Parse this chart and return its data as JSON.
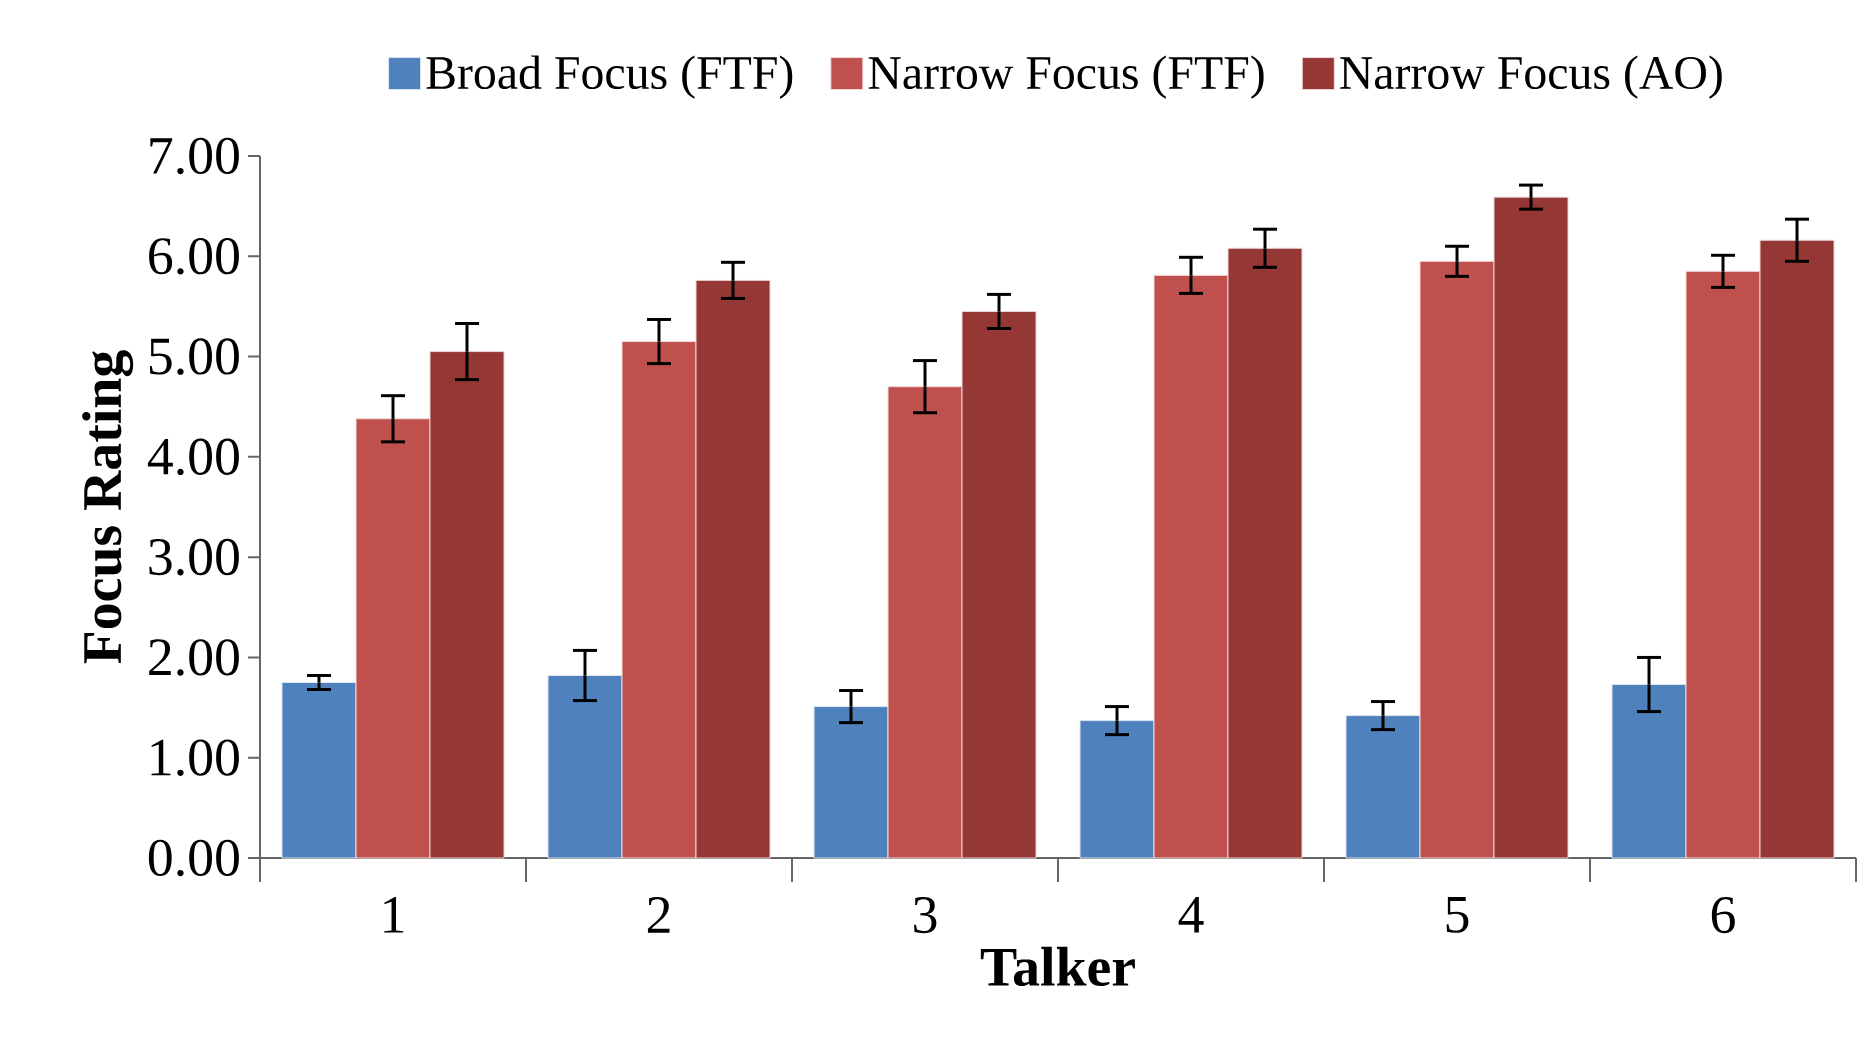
{
  "chart_data": {
    "type": "bar",
    "xlabel": "Talker",
    "ylabel": "Focus Rating",
    "categories": [
      "1",
      "2",
      "3",
      "4",
      "5",
      "6"
    ],
    "series": [
      {
        "name": "Broad Focus (FTF)",
        "color": "#4f81bd",
        "values": [
          1.75,
          1.82,
          1.51,
          1.37,
          1.42,
          1.73
        ],
        "errors": [
          0.07,
          0.25,
          0.16,
          0.14,
          0.14,
          0.27
        ]
      },
      {
        "name": "Narrow Focus (FTF)",
        "color": "#c0504d",
        "values": [
          4.38,
          5.15,
          4.7,
          5.81,
          5.95,
          5.85
        ],
        "errors": [
          0.23,
          0.22,
          0.26,
          0.18,
          0.15,
          0.16
        ]
      },
      {
        "name": "Narrow Focus (AO)",
        "color": "#953735",
        "values": [
          5.05,
          5.76,
          5.45,
          6.08,
          6.59,
          6.16
        ],
        "errors": [
          0.28,
          0.18,
          0.17,
          0.19,
          0.12,
          0.21
        ]
      }
    ],
    "ylim": [
      0,
      7
    ],
    "yticks": [
      {
        "value": 0,
        "label": "0.00"
      },
      {
        "value": 1,
        "label": "1.00"
      },
      {
        "value": 2,
        "label": "2.00"
      },
      {
        "value": 3,
        "label": "3.00"
      },
      {
        "value": 4,
        "label": "4.00"
      },
      {
        "value": 5,
        "label": "5.00"
      },
      {
        "value": 6,
        "label": "6.00"
      },
      {
        "value": 7,
        "label": "7.00"
      }
    ],
    "legend": "top",
    "grid": false
  }
}
